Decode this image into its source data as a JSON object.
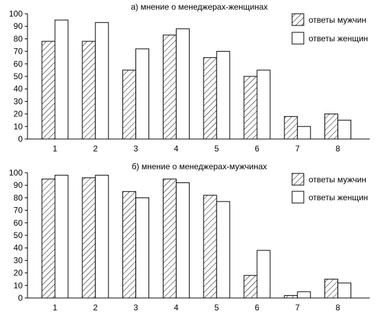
{
  "chart_data": [
    {
      "type": "bar",
      "title": "а) мнение о менеджерах-женщинах",
      "categories": [
        "1",
        "2",
        "3",
        "4",
        "5",
        "6",
        "7",
        "8"
      ],
      "series": [
        {
          "name": "ответы мужчин",
          "values": [
            78,
            78,
            55,
            83,
            65,
            50,
            18,
            20
          ],
          "pattern": "hatched"
        },
        {
          "name": "ответы женщин",
          "values": [
            95,
            93,
            72,
            88,
            70,
            55,
            10,
            15
          ],
          "pattern": "white"
        }
      ],
      "yticks": [
        "0",
        "10",
        "20",
        "30",
        "40",
        "50",
        "60",
        "70",
        "80",
        "90",
        "100"
      ],
      "ylim": [
        0,
        100
      ],
      "xlabel": "",
      "ylabel": "",
      "grid": false,
      "legend": "top-right"
    },
    {
      "type": "bar",
      "title": "б) мнение о менеджерах-мужчинах",
      "categories": [
        "1",
        "2",
        "3",
        "4",
        "5",
        "6",
        "7",
        "8"
      ],
      "series": [
        {
          "name": "ответы мужчин",
          "values": [
            95,
            96,
            85,
            95,
            82,
            18,
            2,
            15
          ],
          "pattern": "hatched"
        },
        {
          "name": "ответы женщин",
          "values": [
            98,
            98,
            80,
            92,
            77,
            38,
            5,
            12
          ],
          "pattern": "white"
        }
      ],
      "yticks": [
        "0",
        "10",
        "20",
        "30",
        "40",
        "50",
        "60",
        "70",
        "80",
        "90",
        "100"
      ],
      "ylim": [
        0,
        100
      ],
      "xlabel": "",
      "ylabel": "",
      "grid": false,
      "legend": "top-right"
    }
  ]
}
